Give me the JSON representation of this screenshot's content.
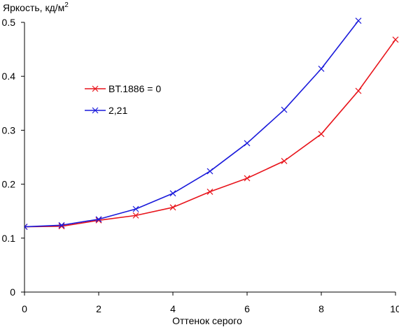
{
  "chart_data": {
    "type": "line",
    "title": "",
    "ylabel": "Яркость, кд/м",
    "ylabel_sup": "2",
    "xlabel": "Оттенок серого",
    "xlim": [
      0,
      10
    ],
    "ylim": [
      0,
      0.5
    ],
    "x_ticks": [
      0,
      2,
      4,
      6,
      8,
      10
    ],
    "y_ticks": [
      0,
      0.1,
      0.2,
      0.3,
      0.4,
      0.5
    ],
    "y_tick_labels": [
      "0",
      "0.1",
      "0.2",
      "0.3",
      "0.4",
      "0.5"
    ],
    "grid": false,
    "legend_position": "center-left",
    "series": [
      {
        "name": "BT.1886 = 0",
        "color": "#e8141b",
        "marker": "x",
        "x": [
          0,
          1,
          2,
          3,
          4,
          5,
          6,
          7,
          8,
          9,
          10
        ],
        "y": [
          0.121,
          0.122,
          0.133,
          0.142,
          0.157,
          0.186,
          0.211,
          0.243,
          0.293,
          0.373,
          0.468
        ]
      },
      {
        "name": "2,21",
        "color": "#1a1adb",
        "marker": "x",
        "x": [
          0,
          1,
          2,
          3,
          4,
          5,
          6,
          7,
          8,
          9
        ],
        "y": [
          0.121,
          0.124,
          0.135,
          0.154,
          0.183,
          0.224,
          0.276,
          0.338,
          0.414,
          0.503
        ]
      }
    ]
  }
}
